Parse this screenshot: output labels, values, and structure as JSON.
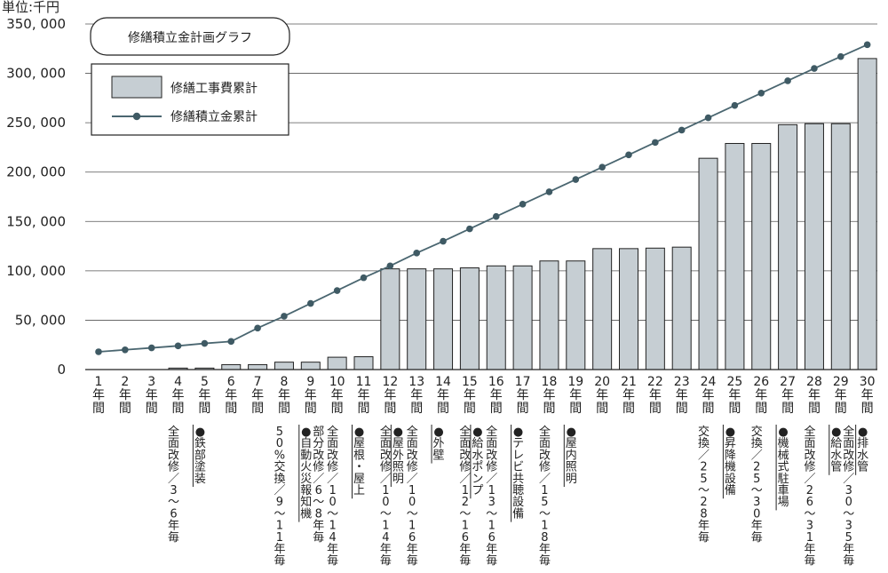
{
  "chart_data": {
    "type": "bar",
    "title": "修繕積立金計画グラフ",
    "unit_label": "単位:千円",
    "ylim": [
      0,
      350000
    ],
    "y_ticks": [
      "0",
      "50, 000",
      "100, 000",
      "150, 000",
      "200, 000",
      "250, 000",
      "300, 000",
      "350, 000"
    ],
    "categories": [
      "1年間",
      "2年間",
      "3年間",
      "4年間",
      "5年間",
      "6年間",
      "7年間",
      "8年間",
      "9年間",
      "10年間",
      "11年間",
      "12年間",
      "13年間",
      "14年間",
      "15年間",
      "16年間",
      "17年間",
      "18年間",
      "19年間",
      "20年間",
      "21年間",
      "22年間",
      "23年間",
      "24年間",
      "25年間",
      "26年間",
      "27年間",
      "28年間",
      "29年間",
      "30年間"
    ],
    "series": [
      {
        "name": "修繕工事費累計",
        "kind": "bar",
        "values": [
          0,
          0,
          0,
          1500,
          1500,
          5000,
          5000,
          7500,
          7500,
          12500,
          13000,
          102000,
          102000,
          102000,
          103000,
          105000,
          105000,
          110000,
          110000,
          122500,
          122500,
          123000,
          124000,
          214000,
          229000,
          229000,
          248000,
          249000,
          249000,
          315000
        ]
      },
      {
        "name": "修繕積立金累計",
        "kind": "line",
        "values": [
          18000,
          20000,
          22000,
          24000,
          26500,
          28500,
          42000,
          54000,
          67000,
          80000,
          93000,
          105000,
          118000,
          130000,
          142500,
          155000,
          167500,
          180000,
          192500,
          205000,
          217500,
          230000,
          242500,
          255000,
          267500,
          280000,
          292500,
          305000,
          317000,
          329000
        ]
      }
    ],
    "annotations": [
      {
        "category": "4年間",
        "text": "全面改修／3～6年毎"
      },
      {
        "category": "5年間",
        "text": "●鉄部塗装"
      },
      {
        "category": "8年間",
        "text": "50%交換／9～11年毎"
      },
      {
        "category": "9年間",
        "text": "●自動火災報知機"
      },
      {
        "category": "9年間",
        "text": "部分改修／6～8年毎"
      },
      {
        "category": "10年間",
        "text": "全面改修／10～14年毎"
      },
      {
        "category": "11年間",
        "text": "●屋根・屋上"
      },
      {
        "category": "12年間",
        "text": "全面改修／10～14年毎"
      },
      {
        "category": "12年間",
        "text": "●屋外照明"
      },
      {
        "category": "13年間",
        "text": "全面改修／10～16年毎"
      },
      {
        "category": "14年間",
        "text": "●外壁"
      },
      {
        "category": "15年間",
        "text": "全面改修／12～16年毎"
      },
      {
        "category": "15年間",
        "text": "●給水ポンプ"
      },
      {
        "category": "16年間",
        "text": "全面改修／13～16年毎"
      },
      {
        "category": "17年間",
        "text": "●テレビ共聴設備"
      },
      {
        "category": "18年間",
        "text": "全面改修／15～18年毎"
      },
      {
        "category": "19年間",
        "text": "●屋内照明"
      },
      {
        "category": "24年間",
        "text": "交換／25～28年毎"
      },
      {
        "category": "25年間",
        "text": "●昇降機設備"
      },
      {
        "category": "26年間",
        "text": "交換／25～30年毎"
      },
      {
        "category": "27年間",
        "text": "●機械式駐車場"
      },
      {
        "category": "28年間",
        "text": "全面改修／26～31年毎"
      },
      {
        "category": "29年間",
        "text": "●給水管"
      },
      {
        "category": "29年間",
        "text": "全面改修／30～35年毎"
      },
      {
        "category": "30年間",
        "text": "●排水管"
      }
    ],
    "colors": {
      "bar_fill": "#c6ced3",
      "bar_stroke": "#222222",
      "line": "#4a6670",
      "marker": "#3f5a64"
    },
    "legend_position": "top-left",
    "grid": "horizontal"
  }
}
